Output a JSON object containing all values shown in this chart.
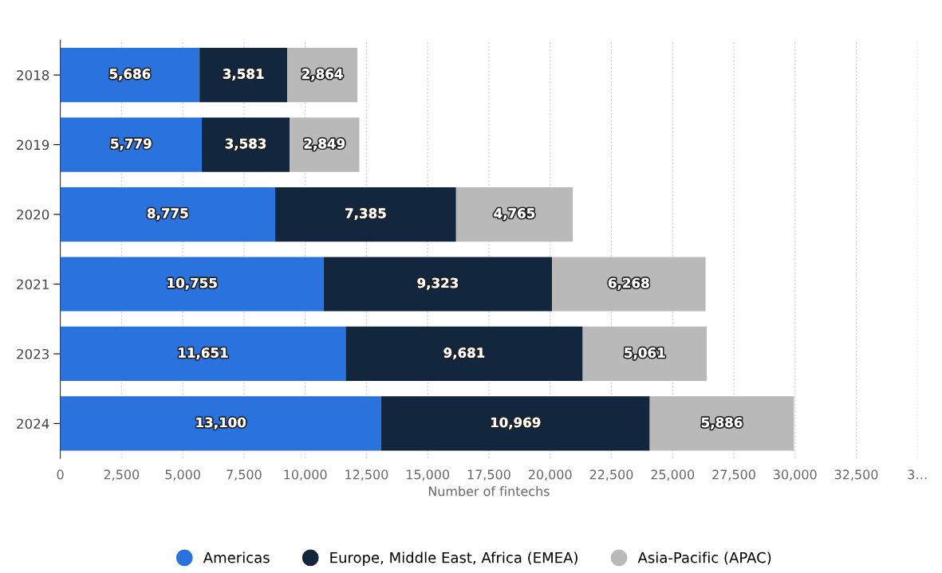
{
  "chart_data": {
    "type": "bar",
    "orientation": "horizontal",
    "stacked": true,
    "categories": [
      "2018",
      "2019",
      "2020",
      "2021",
      "2023",
      "2024"
    ],
    "series": [
      {
        "name": "Americas",
        "color": "#2a72de",
        "values": [
          5686,
          5779,
          8775,
          10755,
          11651,
          13100
        ],
        "value_labels": [
          "5,686",
          "5,779",
          "8,775",
          "10,755",
          "11,651",
          "13,100"
        ]
      },
      {
        "name": "Europe, Middle East, Africa (EMEA)",
        "color": "#12263d",
        "values": [
          3581,
          3583,
          7385,
          9323,
          9681,
          10969
        ],
        "value_labels": [
          "3,581",
          "3,583",
          "7,385",
          "9,323",
          "9,681",
          "10,969"
        ]
      },
      {
        "name": "Asia-Pacific (APAC)",
        "color": "#b9b9b9",
        "values": [
          2864,
          2849,
          4765,
          6268,
          5061,
          5886
        ],
        "value_labels": [
          "2,864",
          "2,849",
          "4,765",
          "6,268",
          "5,061",
          "5,886"
        ]
      }
    ],
    "xlim": [
      0,
      35000
    ],
    "xticks": [
      {
        "value": 0,
        "label": "0"
      },
      {
        "value": 2500,
        "label": "2,500"
      },
      {
        "value": 5000,
        "label": "5,000"
      },
      {
        "value": 7500,
        "label": "7,500"
      },
      {
        "value": 10000,
        "label": "10,000"
      },
      {
        "value": 12500,
        "label": "12,500"
      },
      {
        "value": 15000,
        "label": "15,000"
      },
      {
        "value": 17500,
        "label": "17,500"
      },
      {
        "value": 20000,
        "label": "20,000"
      },
      {
        "value": 22500,
        "label": "22,500"
      },
      {
        "value": 25000,
        "label": "25,000"
      },
      {
        "value": 27500,
        "label": "27,500"
      },
      {
        "value": 30000,
        "label": "30,000"
      },
      {
        "value": 32500,
        "label": "32,500"
      },
      {
        "value": 35000,
        "label": "3…"
      }
    ],
    "xlabel": "Number of fintechs",
    "grid": "x",
    "legend": "bottom"
  }
}
